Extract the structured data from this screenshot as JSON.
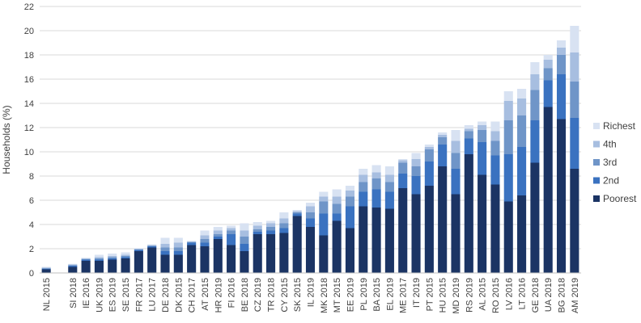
{
  "chart_data": {
    "type": "bar",
    "stacked": true,
    "title": "",
    "xlabel": "",
    "ylabel": "Households (%)",
    "ylim": [
      0,
      22
    ],
    "yticks": [
      0,
      2,
      4,
      6,
      8,
      10,
      12,
      14,
      16,
      18,
      20,
      22
    ],
    "grid": true,
    "legend_position": "right",
    "categories": [
      "NL 2015",
      "",
      "SI 2018",
      "IE 2016",
      "UK 2019",
      "ES 2019",
      "SE 2015",
      "FR 2017",
      "LU 2017",
      "DE 2018",
      "DK 2015",
      "CH 2017",
      "AT 2015",
      "HR 2019",
      "FI 2016",
      "BE 2018",
      "CZ 2019",
      "TR 2018",
      "CY 2015",
      "SK 2015",
      "IL 2019",
      "MK 2018",
      "MT 2015",
      "EE 2019",
      "PL 2019",
      "BA 2015",
      "EL 2019",
      "ME 2017",
      "IT 2019",
      "PT 2015",
      "HU 2015",
      "MD 2019",
      "RS 2019",
      "AL 2015",
      "RO 2015",
      "LV 2016",
      "LT 2016",
      "GE 2018",
      "UA 2019",
      "BG 2018",
      "AM 2019"
    ],
    "series": [
      {
        "name": "Poorest",
        "color": "#1b3464",
        "values": [
          0.3,
          0,
          0.5,
          1.0,
          1.0,
          1.1,
          1.2,
          1.8,
          2.1,
          1.5,
          1.5,
          2.3,
          2.2,
          2.8,
          2.3,
          1.8,
          3.2,
          3.2,
          3.3,
          4.7,
          3.8,
          3.1,
          4.3,
          3.7,
          5.5,
          5.4,
          5.3,
          7.0,
          6.5,
          7.2,
          8.8,
          6.5,
          9.8,
          8.1,
          7.3,
          5.9,
          6.4,
          9.1,
          13.7,
          12.7,
          8.6
        ]
      },
      {
        "name": "2nd",
        "color": "#3a72c0",
        "values": [
          0.05,
          0,
          0.1,
          0.1,
          0.1,
          0.1,
          0.1,
          0.1,
          0.1,
          0.3,
          0.3,
          0.2,
          0.3,
          0.2,
          0.9,
          0.6,
          0.2,
          0.3,
          0.4,
          0.2,
          0.7,
          1.8,
          0.6,
          1.8,
          1.2,
          1.5,
          1.4,
          1.2,
          1.5,
          2.0,
          1.8,
          2.1,
          1.3,
          2.7,
          2.4,
          3.9,
          4.0,
          3.5,
          2.2,
          3.7,
          4.2
        ]
      },
      {
        "name": "3rd",
        "color": "#6f95c8",
        "values": [
          0.05,
          0,
          0.05,
          0.05,
          0.1,
          0.1,
          0.1,
          0.05,
          0.05,
          0.3,
          0.3,
          0.05,
          0.3,
          0.2,
          0.3,
          0.6,
          0.2,
          0.3,
          0.4,
          0.1,
          0.5,
          1.0,
          0.8,
          0.8,
          0.8,
          0.9,
          0.8,
          0.9,
          0.8,
          1.0,
          0.6,
          1.3,
          0.6,
          1.0,
          1.2,
          2.8,
          2.6,
          2.5,
          1.0,
          1.6,
          3.0
        ]
      },
      {
        "name": "4th",
        "color": "#a7bee0",
        "values": [
          0.05,
          0,
          0.05,
          0.05,
          0.1,
          0.1,
          0.1,
          0.05,
          0.05,
          0.3,
          0.4,
          0.05,
          0.3,
          0.3,
          0.2,
          0.5,
          0.3,
          0.3,
          0.4,
          0.1,
          0.5,
          0.4,
          0.6,
          0.5,
          0.6,
          0.5,
          0.6,
          0.2,
          0.6,
          0.2,
          0.2,
          1.0,
          0.2,
          0.4,
          0.8,
          1.6,
          1.4,
          1.3,
          0.7,
          0.6,
          2.4
        ]
      },
      {
        "name": "Richest",
        "color": "#d8e2f2",
        "values": [
          0.05,
          0,
          0.05,
          0.05,
          0.2,
          0.2,
          0.2,
          0.05,
          0.05,
          0.5,
          0.4,
          0.05,
          0.4,
          0.3,
          0.2,
          0.6,
          0.3,
          0.2,
          0.5,
          0.1,
          0.3,
          0.4,
          0.6,
          0.4,
          0.5,
          0.6,
          0.7,
          0.1,
          0.5,
          0.2,
          0.2,
          0.9,
          0.3,
          0.3,
          0.8,
          0.8,
          0.8,
          1.0,
          0.4,
          0.6,
          2.2
        ]
      }
    ]
  }
}
